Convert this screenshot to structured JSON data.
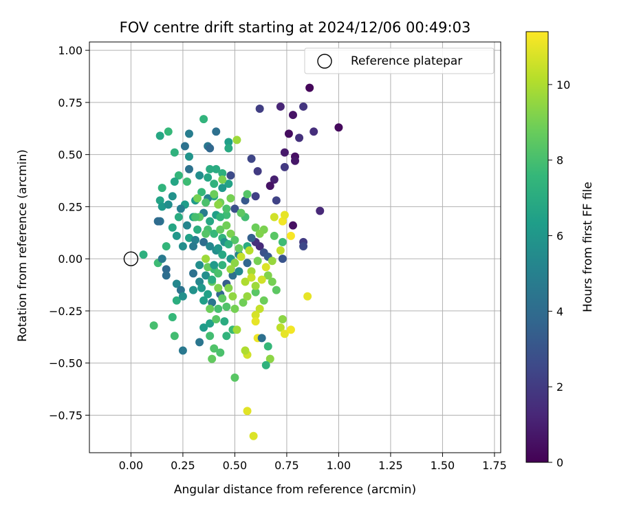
{
  "chart_data": {
    "type": "scatter",
    "title": "FOV centre drift starting at 2024/12/06 00:49:03",
    "xlabel": "Angular distance from reference (arcmin)",
    "ylabel": "Rotation from reference (arcmin)",
    "xlim": [
      -0.2,
      1.78
    ],
    "ylim": [
      -0.93,
      1.04
    ],
    "xticks": [
      0.0,
      0.25,
      0.5,
      0.75,
      1.0,
      1.25,
      1.5,
      1.75
    ],
    "xtick_labels": [
      "0.00",
      "0.25",
      "0.50",
      "0.75",
      "1.00",
      "1.25",
      "1.50",
      "1.75"
    ],
    "yticks": [
      -0.75,
      -0.5,
      -0.25,
      0.0,
      0.25,
      0.5,
      0.75,
      1.0
    ],
    "ytick_labels": [
      "−0.75",
      "−0.50",
      "−0.25",
      "0.00",
      "0.25",
      "0.50",
      "0.75",
      "1.00"
    ],
    "grid": true,
    "legend": {
      "position": "top-right",
      "entries": [
        {
          "label": "Reference platepar",
          "marker": "open-circle"
        }
      ]
    },
    "reference_point": {
      "x": 0.0,
      "y": 0.0
    },
    "colorbar": {
      "label": "Hours from first FF file",
      "colormap": "viridis",
      "range": [
        0,
        11.4
      ],
      "ticks": [
        0,
        2,
        4,
        6,
        8,
        10
      ],
      "tick_labels": [
        "0",
        "2",
        "4",
        "6",
        "8",
        "10"
      ]
    },
    "colormap_stops": [
      "#440154",
      "#482878",
      "#3e4989",
      "#31688e",
      "#26828e",
      "#1f9e89",
      "#35b779",
      "#6ece58",
      "#b5de2b",
      "#fde725"
    ],
    "points": [
      [
        0.86,
        0.82,
        0.2
      ],
      [
        1.0,
        0.63,
        0.3
      ],
      [
        0.78,
        0.69,
        0.6
      ],
      [
        0.72,
        0.73,
        1.2
      ],
      [
        0.83,
        0.73,
        1.8
      ],
      [
        0.62,
        0.72,
        2.1
      ],
      [
        0.88,
        0.61,
        1.5
      ],
      [
        0.81,
        0.58,
        1.6
      ],
      [
        0.76,
        0.6,
        0.4
      ],
      [
        0.74,
        0.51,
        0.8
      ],
      [
        0.79,
        0.49,
        0.5
      ],
      [
        0.79,
        0.47,
        0.7
      ],
      [
        0.74,
        0.44,
        1.9
      ],
      [
        0.69,
        0.38,
        1.0
      ],
      [
        0.67,
        0.35,
        0.6
      ],
      [
        0.7,
        0.28,
        2.3
      ],
      [
        0.61,
        0.42,
        2.0
      ],
      [
        0.58,
        0.48,
        2.4
      ],
      [
        0.6,
        0.3,
        2.2
      ],
      [
        0.55,
        0.28,
        3.2
      ],
      [
        0.48,
        0.4,
        2.6
      ],
      [
        0.5,
        0.24,
        2.8
      ],
      [
        0.91,
        0.23,
        1.3
      ],
      [
        0.78,
        0.16,
        0.5
      ],
      [
        0.83,
        0.08,
        2.0
      ],
      [
        0.83,
        0.06,
        2.5
      ],
      [
        0.62,
        0.06,
        1.4
      ],
      [
        0.6,
        0.08,
        1.6
      ],
      [
        0.58,
        0.1,
        3.5
      ],
      [
        0.64,
        0.03,
        2.9
      ],
      [
        0.66,
        0.01,
        3.2
      ],
      [
        0.73,
        0.0,
        3.0
      ],
      [
        0.28,
        0.6,
        4.8
      ],
      [
        0.35,
        0.67,
        7.4
      ],
      [
        0.37,
        0.54,
        4.6
      ],
      [
        0.38,
        0.53,
        3.8
      ],
      [
        0.26,
        0.54,
        4.3
      ],
      [
        0.28,
        0.49,
        5.9
      ],
      [
        0.28,
        0.43,
        4.3
      ],
      [
        0.33,
        0.4,
        5.6
      ],
      [
        0.37,
        0.39,
        6.7
      ],
      [
        0.41,
        0.43,
        7.0
      ],
      [
        0.44,
        0.41,
        7.2
      ],
      [
        0.47,
        0.36,
        6.6
      ],
      [
        0.44,
        0.34,
        6.1
      ],
      [
        0.4,
        0.3,
        6.9
      ],
      [
        0.37,
        0.29,
        5.0
      ],
      [
        0.31,
        0.28,
        6.2
      ],
      [
        0.3,
        0.2,
        6.6
      ],
      [
        0.35,
        0.22,
        4.8
      ],
      [
        0.41,
        0.21,
        6.4
      ],
      [
        0.46,
        0.21,
        7.8
      ],
      [
        0.38,
        0.18,
        6.8
      ],
      [
        0.32,
        0.14,
        7.1
      ],
      [
        0.28,
        0.1,
        6.5
      ],
      [
        0.31,
        0.09,
        5.0
      ],
      [
        0.35,
        0.08,
        4.1
      ],
      [
        0.38,
        0.06,
        5.3
      ],
      [
        0.41,
        0.04,
        5.5
      ],
      [
        0.44,
        0.02,
        6.8
      ],
      [
        0.48,
        0.0,
        6.1
      ],
      [
        0.44,
        -0.03,
        7.4
      ],
      [
        0.4,
        -0.05,
        7.8
      ],
      [
        0.36,
        -0.08,
        5.6
      ],
      [
        0.33,
        -0.11,
        5.3
      ],
      [
        0.3,
        -0.15,
        5.8
      ],
      [
        0.35,
        -0.2,
        6.4
      ],
      [
        0.39,
        -0.21,
        4.5
      ],
      [
        0.43,
        -0.17,
        3.8
      ],
      [
        0.46,
        -0.12,
        3.3
      ],
      [
        0.49,
        -0.08,
        4.2
      ],
      [
        0.52,
        -0.06,
        5.4
      ],
      [
        0.56,
        -0.02,
        3.8
      ],
      [
        0.52,
        0.02,
        5.2
      ],
      [
        0.56,
        0.06,
        7.0
      ],
      [
        0.14,
        0.59,
        6.8
      ],
      [
        0.18,
        0.61,
        7.6
      ],
      [
        0.21,
        0.51,
        7.3
      ],
      [
        0.23,
        0.4,
        7.5
      ],
      [
        0.21,
        0.37,
        6.7
      ],
      [
        0.15,
        0.34,
        7.4
      ],
      [
        0.14,
        0.28,
        6.6
      ],
      [
        0.15,
        0.25,
        6.1
      ],
      [
        0.18,
        0.26,
        5.6
      ],
      [
        0.2,
        0.3,
        5.8
      ],
      [
        0.23,
        0.2,
        7.0
      ],
      [
        0.2,
        0.15,
        6.7
      ],
      [
        0.14,
        0.18,
        4.4
      ],
      [
        0.13,
        0.18,
        4.0
      ],
      [
        0.22,
        0.11,
        6.0
      ],
      [
        0.25,
        0.06,
        5.6
      ],
      [
        0.17,
        0.06,
        7.5
      ],
      [
        0.06,
        0.02,
        7.2
      ],
      [
        0.13,
        -0.02,
        7.8
      ],
      [
        0.15,
        0.0,
        4.7
      ],
      [
        0.17,
        -0.05,
        3.9
      ],
      [
        0.17,
        -0.08,
        4.1
      ],
      [
        0.22,
        -0.12,
        5.3
      ],
      [
        0.24,
        -0.15,
        4.4
      ],
      [
        0.22,
        -0.2,
        7.1
      ],
      [
        0.25,
        -0.18,
        5.7
      ],
      [
        0.2,
        -0.28,
        7.6
      ],
      [
        0.11,
        -0.32,
        8.0
      ],
      [
        0.21,
        -0.37,
        7.9
      ],
      [
        0.25,
        -0.44,
        4.6
      ],
      [
        0.33,
        -0.4,
        4.5
      ],
      [
        0.35,
        -0.33,
        6.2
      ],
      [
        0.38,
        -0.37,
        7.9
      ],
      [
        0.4,
        -0.43,
        8.2
      ],
      [
        0.39,
        -0.48,
        8.6
      ],
      [
        0.43,
        -0.45,
        8.1
      ],
      [
        0.46,
        -0.37,
        7.4
      ],
      [
        0.49,
        -0.34,
        7.7
      ],
      [
        0.45,
        -0.3,
        7.0
      ],
      [
        0.38,
        -0.31,
        6.5
      ],
      [
        0.41,
        -0.29,
        8.4
      ],
      [
        0.42,
        -0.24,
        8.0
      ],
      [
        0.38,
        -0.24,
        8.8
      ],
      [
        0.44,
        -0.19,
        8.5
      ],
      [
        0.47,
        -0.14,
        9.2
      ],
      [
        0.49,
        -0.18,
        9.5
      ],
      [
        0.46,
        -0.23,
        8.2
      ],
      [
        0.5,
        -0.24,
        9.0
      ],
      [
        0.54,
        -0.21,
        8.9
      ],
      [
        0.56,
        -0.18,
        9.6
      ],
      [
        0.6,
        -0.16,
        8.4
      ],
      [
        0.64,
        -0.2,
        8.8
      ],
      [
        0.62,
        -0.24,
        10.4
      ],
      [
        0.6,
        -0.27,
        10.7
      ],
      [
        0.6,
        -0.3,
        11.0
      ],
      [
        0.61,
        -0.38,
        11.1
      ],
      [
        0.63,
        -0.38,
        4.2
      ],
      [
        0.66,
        -0.42,
        7.6
      ],
      [
        0.67,
        -0.48,
        9.4
      ],
      [
        0.65,
        -0.51,
        7.3
      ],
      [
        0.56,
        -0.46,
        10.6
      ],
      [
        0.55,
        -0.44,
        10.0
      ],
      [
        0.51,
        -0.34,
        9.8
      ],
      [
        0.5,
        -0.57,
        8.4
      ],
      [
        0.56,
        -0.73,
        10.9
      ],
      [
        0.59,
        -0.85,
        10.8
      ],
      [
        0.72,
        -0.33,
        10.3
      ],
      [
        0.74,
        -0.36,
        11.0
      ],
      [
        0.73,
        -0.29,
        9.4
      ],
      [
        0.77,
        -0.34,
        11.2
      ],
      [
        0.85,
        -0.18,
        11.0
      ],
      [
        0.7,
        -0.15,
        8.5
      ],
      [
        0.68,
        -0.11,
        9.0
      ],
      [
        0.66,
        -0.08,
        9.2
      ],
      [
        0.65,
        -0.04,
        10.8
      ],
      [
        0.68,
        -0.01,
        9.6
      ],
      [
        0.72,
        0.04,
        10.4
      ],
      [
        0.73,
        0.08,
        7.8
      ],
      [
        0.77,
        0.11,
        11.3
      ],
      [
        0.73,
        0.18,
        11.2
      ],
      [
        0.74,
        0.21,
        11.0
      ],
      [
        0.69,
        0.11,
        8.4
      ],
      [
        0.64,
        0.14,
        9.1
      ],
      [
        0.6,
        0.15,
        8.8
      ],
      [
        0.55,
        0.2,
        7.9
      ],
      [
        0.53,
        0.22,
        8.5
      ],
      [
        0.56,
        0.31,
        8.3
      ],
      [
        0.51,
        0.57,
        9.7
      ],
      [
        0.47,
        0.56,
        6.4
      ],
      [
        0.47,
        0.53,
        6.9
      ],
      [
        0.41,
        0.61,
        4.2
      ],
      [
        0.43,
        0.27,
        8.9
      ],
      [
        0.42,
        0.26,
        9.4
      ],
      [
        0.4,
        0.31,
        8.8
      ],
      [
        0.44,
        0.38,
        9.1
      ],
      [
        0.36,
        0.27,
        8.1
      ],
      [
        0.34,
        0.32,
        7.6
      ],
      [
        0.32,
        0.29,
        9.0
      ],
      [
        0.33,
        0.2,
        8.4
      ],
      [
        0.37,
        0.14,
        8.0
      ],
      [
        0.4,
        0.12,
        7.6
      ],
      [
        0.44,
        0.1,
        7.4
      ],
      [
        0.43,
        0.14,
        8.6
      ],
      [
        0.46,
        0.16,
        8.9
      ],
      [
        0.48,
        0.12,
        9.1
      ],
      [
        0.5,
        0.09,
        8.3
      ],
      [
        0.52,
        0.05,
        8.7
      ],
      [
        0.53,
        0.01,
        10.4
      ],
      [
        0.5,
        -0.02,
        9.4
      ],
      [
        0.48,
        -0.05,
        9.6
      ],
      [
        0.42,
        -0.07,
        8.1
      ],
      [
        0.37,
        -0.04,
        8.7
      ],
      [
        0.36,
        0.0,
        9.7
      ],
      [
        0.39,
        -0.11,
        8.6
      ],
      [
        0.42,
        -0.14,
        9.2
      ],
      [
        0.55,
        -0.11,
        10.0
      ],
      [
        0.58,
        -0.06,
        9.8
      ],
      [
        0.57,
        0.04,
        10.2
      ],
      [
        0.61,
        -0.01,
        9.0
      ],
      [
        0.63,
        -0.1,
        10.6
      ],
      [
        0.6,
        -0.13,
        9.7
      ],
      [
        0.58,
        -0.09,
        10.5
      ],
      [
        0.62,
        0.12,
        9.2
      ],
      [
        0.69,
        0.2,
        10.6
      ],
      [
        0.27,
        0.37,
        7.8
      ],
      [
        0.26,
        0.26,
        6.3
      ],
      [
        0.24,
        0.24,
        4.9
      ],
      [
        0.27,
        0.16,
        5.2
      ],
      [
        0.3,
        0.06,
        4.7
      ],
      [
        0.33,
        -0.03,
        5.6
      ],
      [
        0.3,
        -0.07,
        4.3
      ],
      [
        0.34,
        -0.14,
        6.1
      ],
      [
        0.37,
        -0.17,
        6.5
      ],
      [
        0.39,
        -0.1,
        7.0
      ],
      [
        0.4,
        -0.03,
        6.2
      ],
      [
        0.42,
        0.05,
        6.0
      ],
      [
        0.45,
        0.08,
        5.8
      ],
      [
        0.47,
        0.07,
        7.2
      ],
      [
        0.43,
        0.2,
        7.5
      ],
      [
        0.46,
        0.24,
        8.1
      ],
      [
        0.48,
        0.29,
        9.0
      ],
      [
        0.4,
        0.36,
        7.3
      ],
      [
        0.38,
        0.43,
        7.0
      ],
      [
        0.31,
        0.2,
        8.0
      ],
      [
        0.36,
        0.12,
        8.3
      ]
    ]
  }
}
